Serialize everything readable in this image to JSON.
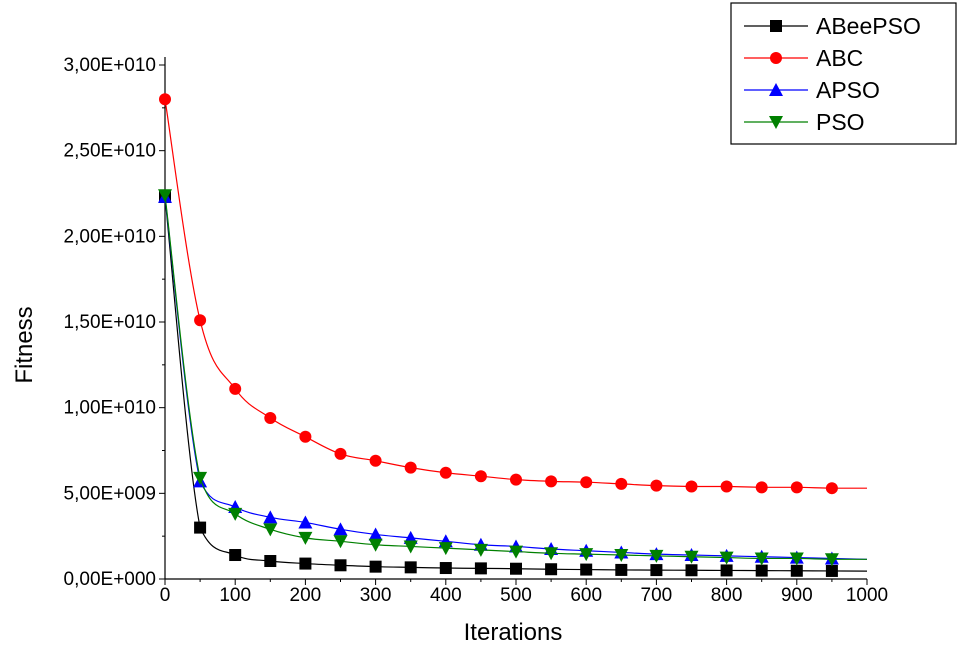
{
  "chart_data": {
    "type": "line",
    "title": "",
    "xlabel": "Iterations",
    "ylabel": "Fitness",
    "xlim": [
      0,
      1000
    ],
    "ylim": [
      0,
      30000000000
    ],
    "x_ticks": [
      0,
      100,
      200,
      300,
      400,
      500,
      600,
      700,
      800,
      900,
      1000
    ],
    "x_tick_labels": [
      "0",
      "100",
      "200",
      "300",
      "400",
      "500",
      "600",
      "700",
      "800",
      "900",
      "1000"
    ],
    "y_ticks": [
      0,
      5000000000,
      10000000000,
      15000000000,
      20000000000,
      25000000000,
      30000000000
    ],
    "y_tick_labels": [
      "0,00E+000",
      "5,00E+009",
      "1,00E+010",
      "1,50E+010",
      "2,00E+010",
      "2,50E+010",
      "3,00E+010"
    ],
    "grid": false,
    "legend_position": "top-right",
    "x": [
      0,
      50,
      100,
      150,
      200,
      250,
      300,
      350,
      400,
      450,
      500,
      550,
      600,
      650,
      700,
      750,
      800,
      850,
      900,
      950
    ],
    "line_end_x": 1000,
    "series": [
      {
        "name": "ABeePSO",
        "color": "#000000",
        "marker": "square",
        "values": [
          22300000000,
          3000000000,
          1400000000,
          1050000000,
          900000000,
          800000000,
          720000000,
          680000000,
          640000000,
          620000000,
          600000000,
          570000000,
          550000000,
          530000000,
          520000000,
          510000000,
          500000000,
          490000000,
          480000000,
          470000000
        ],
        "line_end_value": 460000000
      },
      {
        "name": "ABC",
        "color": "#ff0000",
        "marker": "circle",
        "values": [
          28000000000,
          15100000000,
          11100000000,
          9400000000,
          8300000000,
          7300000000,
          6900000000,
          6500000000,
          6200000000,
          6000000000,
          5800000000,
          5700000000,
          5650000000,
          5550000000,
          5450000000,
          5400000000,
          5400000000,
          5350000000,
          5350000000,
          5300000000
        ],
        "line_end_value": 5300000000
      },
      {
        "name": "APSO",
        "color": "#0000ff",
        "marker": "triangle-up",
        "values": [
          22300000000,
          5700000000,
          4200000000,
          3600000000,
          3300000000,
          2900000000,
          2600000000,
          2400000000,
          2200000000,
          2000000000,
          1900000000,
          1750000000,
          1650000000,
          1550000000,
          1450000000,
          1400000000,
          1350000000,
          1300000000,
          1250000000,
          1200000000
        ],
        "line_end_value": 1150000000
      },
      {
        "name": "PSO",
        "color": "#008000",
        "marker": "triangle-down",
        "values": [
          22400000000,
          5900000000,
          3800000000,
          2900000000,
          2400000000,
          2200000000,
          2000000000,
          1900000000,
          1800000000,
          1700000000,
          1600000000,
          1500000000,
          1450000000,
          1400000000,
          1350000000,
          1300000000,
          1250000000,
          1200000000,
          1200000000,
          1150000000
        ],
        "line_end_value": 1150000000
      }
    ]
  }
}
